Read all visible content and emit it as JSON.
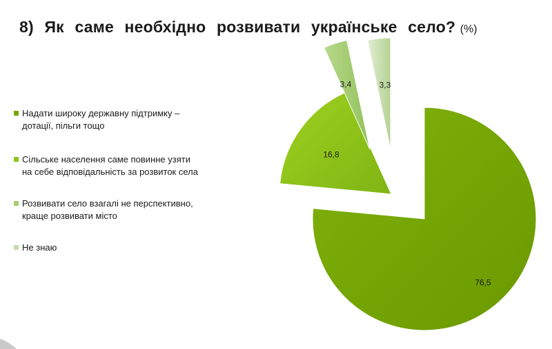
{
  "title": {
    "text": "8) Як   саме   необхідно   розвивати   українське   село?",
    "unit": "(%)"
  },
  "chart_data": {
    "type": "pie",
    "title": "8) Як саме необхідно розвивати українське село?",
    "unit": "(%)",
    "exploded": true,
    "legend_position": "left",
    "slices": [
      {
        "label": "Надати широку державну підтримку – дотації, пільги тощо",
        "value": 76.5,
        "value_label": "76,5",
        "color": "#76a600"
      },
      {
        "label": "Сільське населення саме повинне узяти на себе відповідальність за розвиток села",
        "value": 16.8,
        "value_label": "16,8",
        "color": "#8dc21b"
      },
      {
        "label": "Розвивати село взагалі  не перспективно, краще розвивати місто",
        "value": 3.4,
        "value_label": "3,4",
        "color": "#a6cd6e"
      },
      {
        "label": "Не знаю",
        "value": 3.3,
        "value_label": "3,3",
        "color": "#c5dcab"
      }
    ]
  },
  "legend": [
    {
      "text": "Надати широку державну підтримку – дотації, пільги тощо",
      "color": "#76a600"
    },
    {
      "text": "Сільське населення саме повинне узяти на себе відповідальність за розвиток села",
      "color": "#8dc21b"
    },
    {
      "text": "Розвивати село взагалі  не перспективно, краще розвивати місто",
      "color": "#a6cd6e"
    },
    {
      "text": "Не знаю",
      "color": "#c5dcab"
    }
  ]
}
